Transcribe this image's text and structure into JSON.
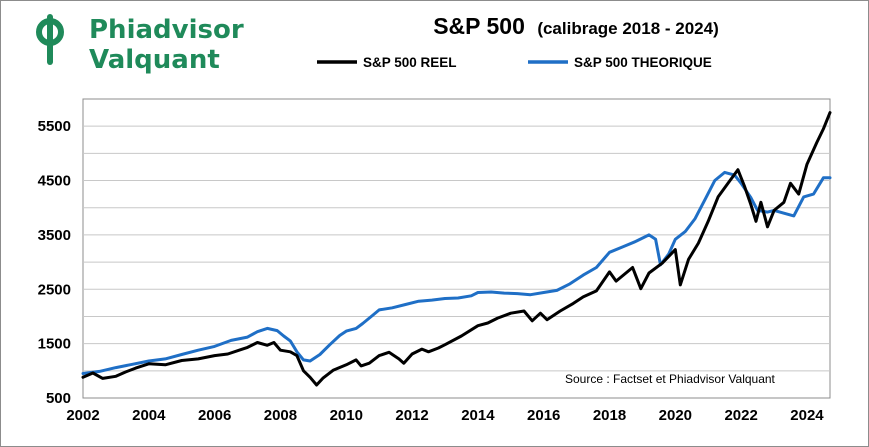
{
  "brand": {
    "line1": "Phiadvisor",
    "line2": "Valquant",
    "color": "#1f8a5a",
    "logo_icon": "phiadvisor-logo-icon"
  },
  "chart_data": {
    "type": "line",
    "title": "S&P 500",
    "subtitle": "(calibrage 2018 - 2024)",
    "source": "Source : Factset et Phiadvisor Valquant",
    "xlabel": "",
    "ylabel": "",
    "xlim": [
      2002,
      2024.7
    ],
    "ylim": [
      500,
      6000
    ],
    "x_ticks": [
      2002,
      2004,
      2006,
      2008,
      2010,
      2012,
      2014,
      2016,
      2018,
      2020,
      2022,
      2024
    ],
    "x_tick_labels": [
      "2002",
      "2004",
      "2006",
      "2008",
      "2010",
      "2012",
      "2014",
      "2016",
      "2018",
      "2020",
      "2022",
      "2024"
    ],
    "y_ticks": [
      500,
      1500,
      2500,
      3500,
      4500,
      5500
    ],
    "y_tick_labels": [
      "500",
      "1500",
      "2500",
      "3500",
      "4500",
      "5500"
    ],
    "y_gridlines": [
      1000,
      1500,
      2000,
      2500,
      3000,
      3500,
      4000,
      4500,
      5000,
      5500
    ],
    "grid": true,
    "legend_position": "top",
    "series": [
      {
        "name": "S&P 500 REEL",
        "color": "#000000",
        "points": [
          [
            2002.0,
            880
          ],
          [
            2002.3,
            960
          ],
          [
            2002.6,
            860
          ],
          [
            2003.0,
            900
          ],
          [
            2003.3,
            980
          ],
          [
            2003.6,
            1050
          ],
          [
            2004.0,
            1130
          ],
          [
            2004.5,
            1110
          ],
          [
            2005.0,
            1190
          ],
          [
            2005.5,
            1220
          ],
          [
            2006.0,
            1280
          ],
          [
            2006.4,
            1310
          ],
          [
            2006.8,
            1390
          ],
          [
            2007.0,
            1430
          ],
          [
            2007.3,
            1520
          ],
          [
            2007.6,
            1470
          ],
          [
            2007.8,
            1520
          ],
          [
            2008.0,
            1380
          ],
          [
            2008.3,
            1350
          ],
          [
            2008.5,
            1280
          ],
          [
            2008.7,
            1000
          ],
          [
            2008.9,
            880
          ],
          [
            2009.1,
            740
          ],
          [
            2009.3,
            870
          ],
          [
            2009.6,
            1010
          ],
          [
            2010.0,
            1110
          ],
          [
            2010.3,
            1200
          ],
          [
            2010.45,
            1090
          ],
          [
            2010.7,
            1140
          ],
          [
            2011.0,
            1280
          ],
          [
            2011.3,
            1340
          ],
          [
            2011.6,
            1220
          ],
          [
            2011.75,
            1140
          ],
          [
            2012.0,
            1310
          ],
          [
            2012.3,
            1400
          ],
          [
            2012.5,
            1350
          ],
          [
            2012.8,
            1420
          ],
          [
            2013.0,
            1480
          ],
          [
            2013.5,
            1640
          ],
          [
            2014.0,
            1830
          ],
          [
            2014.3,
            1880
          ],
          [
            2014.6,
            1970
          ],
          [
            2015.0,
            2060
          ],
          [
            2015.4,
            2100
          ],
          [
            2015.65,
            1920
          ],
          [
            2015.9,
            2060
          ],
          [
            2016.1,
            1940
          ],
          [
            2016.5,
            2100
          ],
          [
            2016.9,
            2240
          ],
          [
            2017.2,
            2360
          ],
          [
            2017.6,
            2470
          ],
          [
            2018.0,
            2820
          ],
          [
            2018.2,
            2650
          ],
          [
            2018.7,
            2900
          ],
          [
            2018.95,
            2510
          ],
          [
            2019.2,
            2800
          ],
          [
            2019.6,
            2980
          ],
          [
            2020.0,
            3230
          ],
          [
            2020.15,
            2580
          ],
          [
            2020.4,
            3050
          ],
          [
            2020.7,
            3350
          ],
          [
            2021.0,
            3750
          ],
          [
            2021.3,
            4200
          ],
          [
            2021.6,
            4450
          ],
          [
            2021.9,
            4700
          ],
          [
            2022.1,
            4400
          ],
          [
            2022.3,
            4050
          ],
          [
            2022.45,
            3750
          ],
          [
            2022.6,
            4100
          ],
          [
            2022.8,
            3650
          ],
          [
            2023.0,
            3950
          ],
          [
            2023.3,
            4100
          ],
          [
            2023.5,
            4450
          ],
          [
            2023.75,
            4250
          ],
          [
            2024.0,
            4800
          ],
          [
            2024.3,
            5200
          ],
          [
            2024.5,
            5450
          ],
          [
            2024.7,
            5750
          ]
        ]
      },
      {
        "name": "S&P 500 THEORIQUE",
        "color": "#1f6fc6",
        "points": [
          [
            2002.0,
            950
          ],
          [
            2002.5,
            990
          ],
          [
            2003.0,
            1060
          ],
          [
            2003.5,
            1120
          ],
          [
            2004.0,
            1180
          ],
          [
            2004.5,
            1220
          ],
          [
            2005.0,
            1300
          ],
          [
            2005.5,
            1380
          ],
          [
            2006.0,
            1450
          ],
          [
            2006.5,
            1560
          ],
          [
            2007.0,
            1620
          ],
          [
            2007.3,
            1720
          ],
          [
            2007.6,
            1780
          ],
          [
            2007.9,
            1740
          ],
          [
            2008.1,
            1640
          ],
          [
            2008.3,
            1550
          ],
          [
            2008.5,
            1350
          ],
          [
            2008.7,
            1200
          ],
          [
            2008.9,
            1180
          ],
          [
            2009.2,
            1300
          ],
          [
            2009.5,
            1480
          ],
          [
            2009.8,
            1650
          ],
          [
            2010.0,
            1730
          ],
          [
            2010.3,
            1780
          ],
          [
            2010.5,
            1870
          ],
          [
            2010.8,
            2020
          ],
          [
            2011.0,
            2120
          ],
          [
            2011.4,
            2160
          ],
          [
            2011.8,
            2220
          ],
          [
            2012.2,
            2280
          ],
          [
            2012.6,
            2300
          ],
          [
            2013.0,
            2330
          ],
          [
            2013.4,
            2340
          ],
          [
            2013.8,
            2380
          ],
          [
            2014.0,
            2440
          ],
          [
            2014.4,
            2450
          ],
          [
            2014.8,
            2430
          ],
          [
            2015.2,
            2420
          ],
          [
            2015.6,
            2400
          ],
          [
            2016.0,
            2440
          ],
          [
            2016.4,
            2480
          ],
          [
            2016.8,
            2600
          ],
          [
            2017.2,
            2760
          ],
          [
            2017.6,
            2900
          ],
          [
            2018.0,
            3180
          ],
          [
            2018.4,
            3280
          ],
          [
            2018.8,
            3380
          ],
          [
            2019.2,
            3500
          ],
          [
            2019.4,
            3420
          ],
          [
            2019.55,
            2950
          ],
          [
            2019.8,
            3150
          ],
          [
            2020.0,
            3420
          ],
          [
            2020.3,
            3560
          ],
          [
            2020.6,
            3800
          ],
          [
            2020.9,
            4150
          ],
          [
            2021.2,
            4500
          ],
          [
            2021.5,
            4650
          ],
          [
            2021.8,
            4600
          ],
          [
            2022.0,
            4450
          ],
          [
            2022.3,
            4180
          ],
          [
            2022.5,
            3950
          ],
          [
            2022.8,
            3920
          ],
          [
            2023.0,
            3950
          ],
          [
            2023.3,
            3900
          ],
          [
            2023.6,
            3850
          ],
          [
            2023.9,
            4200
          ],
          [
            2024.2,
            4250
          ],
          [
            2024.5,
            4550
          ],
          [
            2024.7,
            4550
          ]
        ]
      }
    ]
  }
}
